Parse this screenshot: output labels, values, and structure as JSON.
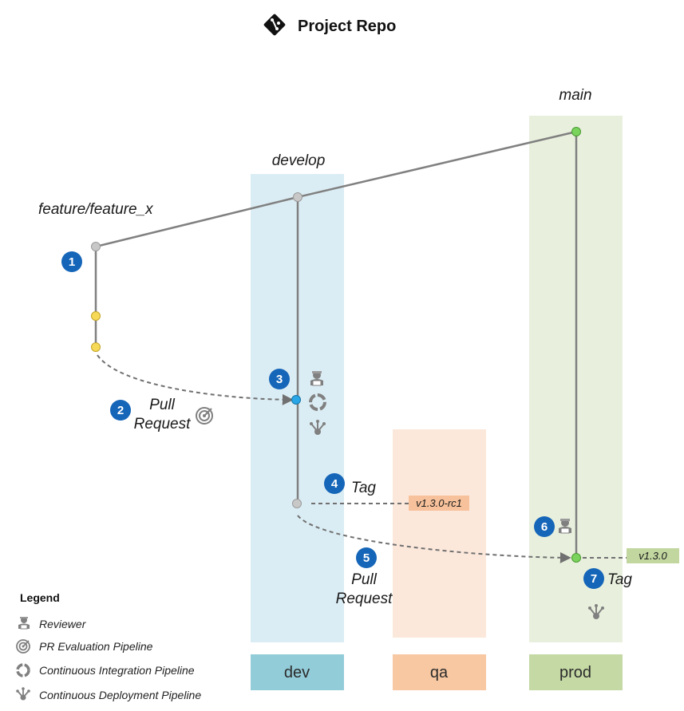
{
  "title": "Project Repo",
  "branches": {
    "main": "main",
    "develop": "develop",
    "feature": "feature/feature_x"
  },
  "steps": {
    "s1": "1",
    "s2": "2",
    "s3": "3",
    "s4": "4",
    "s5": "5",
    "s6": "6",
    "s7": "7"
  },
  "annotations": {
    "pr1_line1": "Pull",
    "pr1_line2": "Request",
    "tag4": "Tag",
    "pr5_line1": "Pull",
    "pr5_line2": "Request",
    "tag7": "Tag"
  },
  "tags": {
    "rc": "v1.3.0-rc1",
    "release": "v1.3.0"
  },
  "environments": {
    "dev": "dev",
    "qa": "qa",
    "prod": "prod"
  },
  "legend": {
    "heading": "Legend",
    "reviewer": "Reviewer",
    "pr_eval": "PR Evaluation Pipeline",
    "ci": "Continuous Integration Pipeline",
    "cd": "Continuous Deployment Pipeline"
  },
  "colors": {
    "dev_band": "#dbedf4",
    "dev_label": "#93ccd9",
    "qa_band": "#fce8db",
    "qa_label": "#f7c8a2",
    "prod_band": "#e8f0dd",
    "prod_label": "#c4d9a4",
    "branch_line": "#808080",
    "step_badge": "#1565b8",
    "commit_yellow": "#f6d957",
    "commit_green": "#7ad35c",
    "commit_blue": "#29a6e8",
    "commit_gray": "#c8c8c8",
    "tag_rc": "#f7c29b",
    "tag_release": "#c2d7a0"
  }
}
